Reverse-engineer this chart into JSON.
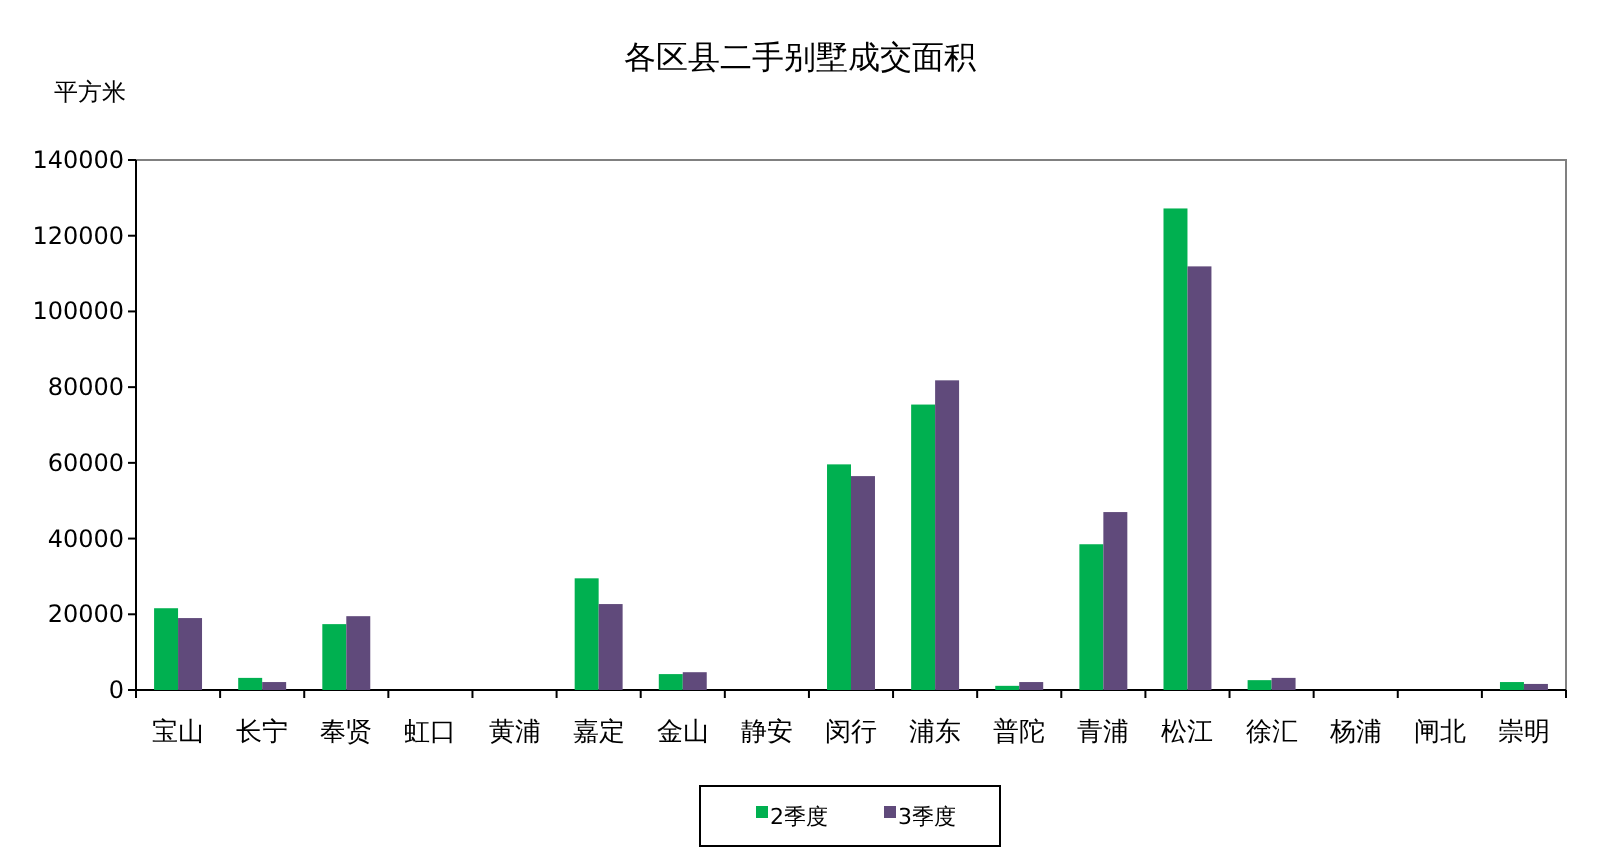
{
  "chart_data": {
    "type": "bar",
    "title": "各区县二手别墅成交面积",
    "ylabel": "平方米",
    "categories": [
      "宝山",
      "长宁",
      "奉贤",
      "虹口",
      "黄浦",
      "嘉定",
      "金山",
      "静安",
      "闵行",
      "浦东",
      "普陀",
      "青浦",
      "松江",
      "徐汇",
      "杨浦",
      "闸北",
      "崇明"
    ],
    "series": [
      {
        "name": "2季度",
        "color": "#00b050",
        "values": [
          21600,
          3200,
          17400,
          0,
          0,
          29500,
          4200,
          0,
          59600,
          75400,
          1100,
          38500,
          127200,
          2600,
          0,
          0,
          2100
        ]
      },
      {
        "name": "3季度",
        "color": "#604a7b",
        "values": [
          19000,
          2100,
          19500,
          0,
          0,
          22700,
          4700,
          0,
          56500,
          81800,
          2100,
          47000,
          111900,
          3200,
          0,
          0,
          1600
        ]
      }
    ],
    "ylim": [
      0,
      140000
    ],
    "yticks": [
      0,
      20000,
      40000,
      60000,
      80000,
      100000,
      120000,
      140000
    ],
    "grid": false,
    "legend": "bottom"
  }
}
